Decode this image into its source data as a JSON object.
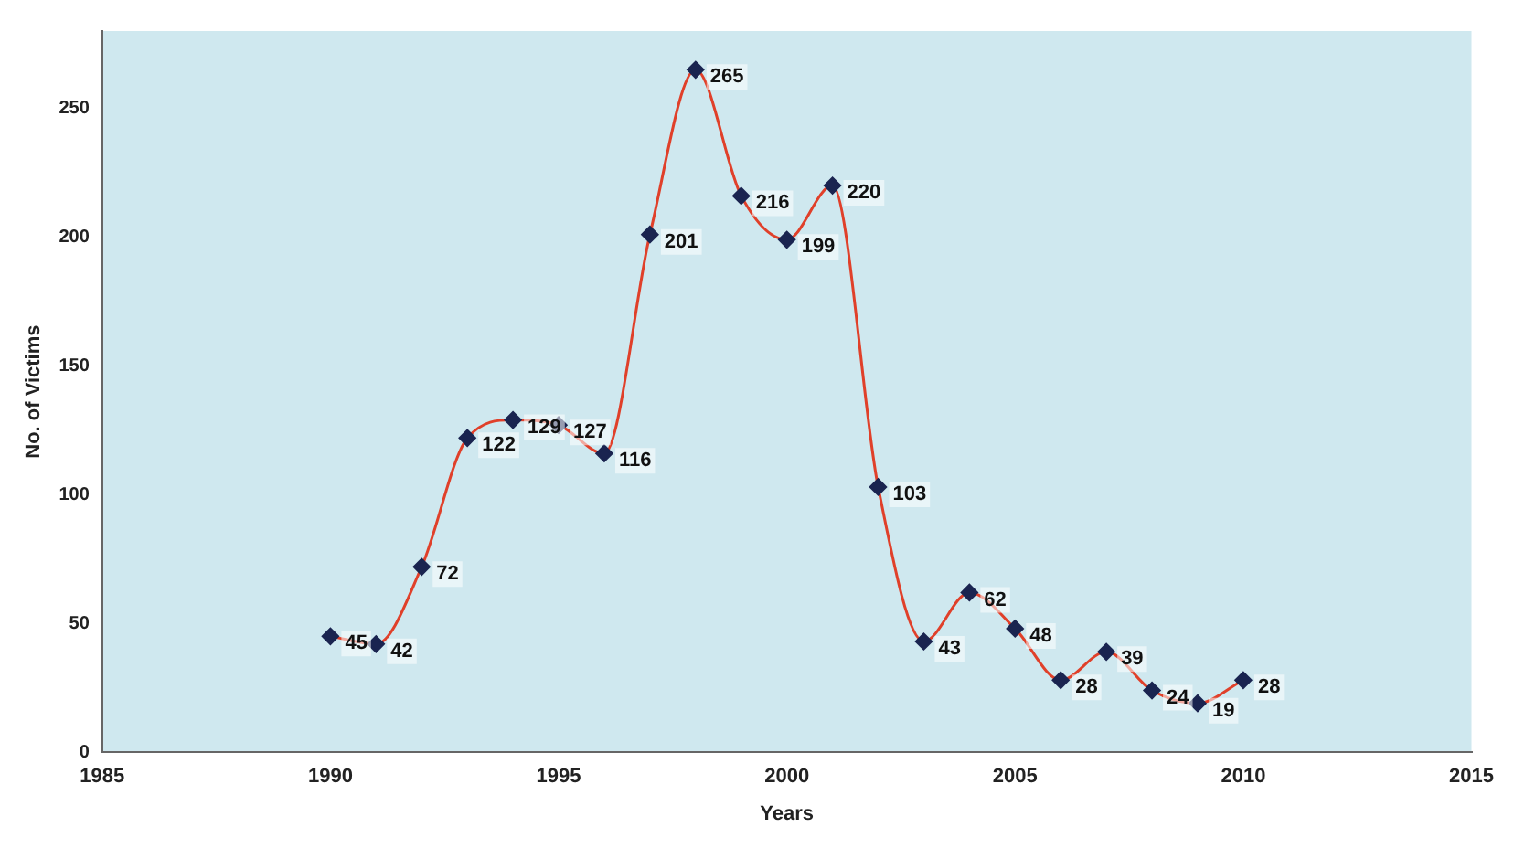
{
  "chart_data": {
    "type": "line",
    "xlabel": "Years",
    "ylabel": "No. of Victims",
    "x": [
      1990,
      1991,
      1992,
      1993,
      1994,
      1995,
      1996,
      1997,
      1998,
      1999,
      2000,
      2001,
      2002,
      2003,
      2004,
      2005,
      2006,
      2007,
      2008,
      2009,
      2010
    ],
    "series": [
      {
        "color": "#e0402a",
        "values": [
          45,
          42,
          72,
          122,
          129,
          127,
          116,
          201,
          265,
          216,
          199,
          220,
          103,
          43,
          62,
          48,
          28,
          39,
          24,
          19,
          28
        ]
      }
    ],
    "xlim": [
      1985,
      2015
    ],
    "xticks": [
      1985,
      1990,
      1995,
      2000,
      2005,
      2010,
      2015
    ],
    "ylim": [
      0,
      280
    ],
    "yticks": [
      0,
      50,
      100,
      150,
      200,
      250
    ],
    "grid": false,
    "legend": false,
    "marker": "diamond",
    "line_style": "solid",
    "data_labels": true
  }
}
